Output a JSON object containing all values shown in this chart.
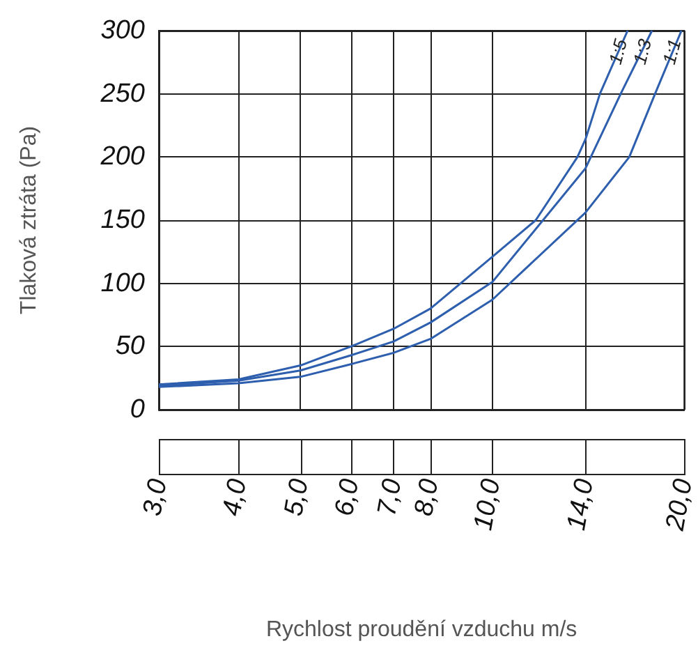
{
  "chart_data": {
    "type": "line",
    "xlabel": "Rychlost proudění vzduchu m/s",
    "ylabel": "Tlaková ztráta (Pa)",
    "log": "x",
    "grid": true,
    "marker": "none",
    "line_style": "solid",
    "xlim": [
      3,
      20
    ],
    "xticks": [
      {
        "value": 3,
        "label": "3,0"
      },
      {
        "value": 4,
        "label": "4,0"
      },
      {
        "value": 5,
        "label": "5,0"
      },
      {
        "value": 6,
        "label": "6,0"
      },
      {
        "value": 7,
        "label": "7,0"
      },
      {
        "value": 8,
        "label": "8,0"
      },
      {
        "value": 10,
        "label": "10,0"
      },
      {
        "value": 14,
        "label": "14,0"
      },
      {
        "value": 20,
        "label": "20,0"
      }
    ],
    "ylim": [
      0,
      300
    ],
    "yticks": [
      0,
      50,
      100,
      150,
      200,
      250,
      300
    ],
    "series": [
      {
        "name": "1:5",
        "color": "#2d5fae",
        "x": [
          3,
          4,
          5,
          6,
          7,
          8,
          10,
          11.7,
          13.6,
          14,
          14.75,
          16.3
        ],
        "values": [
          20,
          24,
          35,
          50,
          64,
          80,
          121,
          150,
          200,
          214,
          250,
          300
        ]
      },
      {
        "name": "1:3",
        "color": "#2d5fae",
        "x": [
          3,
          4,
          5,
          6,
          7,
          8,
          10,
          14,
          15.9,
          17.8
        ],
        "values": [
          19,
          23,
          31,
          43,
          54,
          69,
          101,
          191,
          250,
          300
        ]
      },
      {
        "name": "1:1",
        "color": "#2d5fae",
        "x": [
          3,
          4,
          5,
          6,
          7,
          8,
          10,
          14,
          16.4,
          18,
          19.8
        ],
        "values": [
          18,
          21,
          26,
          36,
          45,
          56,
          87,
          156,
          200,
          250,
          300
        ]
      }
    ]
  }
}
